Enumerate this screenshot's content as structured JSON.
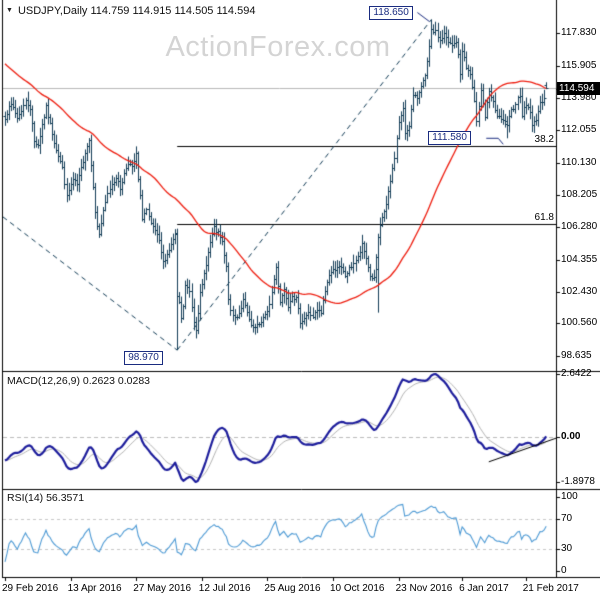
{
  "window": {
    "title": "USDJPY,Daily 114.759 114.915 114.505 114.594"
  },
  "watermark": "ActionForex.com",
  "macd_panel": {
    "label": "MACD(12,26,9) 0.2623 0.0283"
  },
  "rsi_panel": {
    "label": "RSI(14) 56.3571"
  },
  "chart_data": {
    "type": "candlestick",
    "symbol": "USDJPY",
    "timeframe": "Daily",
    "last_bar": {
      "open": 114.759,
      "high": 114.915,
      "low": 114.505,
      "close": 114.594
    },
    "price_axis": {
      "ticks": [
        "117.830",
        "115.905",
        "113.980",
        "112.055",
        "110.130",
        "108.205",
        "106.280",
        "104.355",
        "102.430",
        "100.560",
        "98.635"
      ],
      "ylim": [
        97.7,
        119.7
      ],
      "current_price": "114.594",
      "current_price_value": 114.594
    },
    "x_axis": {
      "ticks": [
        {
          "label": "29 Feb 2016",
          "d": 0
        },
        {
          "label": "13 Apr 2016",
          "d": 32
        },
        {
          "label": "27 May 2016",
          "d": 64
        },
        {
          "label": "12 Jul 2016",
          "d": 96
        },
        {
          "label": "25 Aug 2016",
          "d": 128
        },
        {
          "label": "10 Oct 2016",
          "d": 160
        },
        {
          "label": "23 Nov 2016",
          "d": 192
        },
        {
          "label": "6 Jan 2017",
          "d": 223
        },
        {
          "label": "21 Feb 2017",
          "d": 254
        }
      ]
    },
    "bars": {
      "count": 265,
      "first_open": 112.9,
      "prehistory": {
        "len": 70,
        "start": 121.5
      },
      "close_anchors": [
        [
          0,
          112.7
        ],
        [
          2,
          113.6
        ],
        [
          4,
          113.4
        ],
        [
          6,
          112.8
        ],
        [
          8,
          113.3
        ],
        [
          10,
          113.8
        ],
        [
          12,
          113.4
        ],
        [
          14,
          111.4
        ],
        [
          16,
          111.2
        ],
        [
          18,
          112.4
        ],
        [
          20,
          113.4
        ],
        [
          22,
          112.4
        ],
        [
          24,
          111.4
        ],
        [
          26,
          110.6
        ],
        [
          28,
          109.8
        ],
        [
          30,
          108.1
        ],
        [
          31,
          108.5
        ],
        [
          33,
          109.1
        ],
        [
          35,
          108.8
        ],
        [
          37,
          109.8
        ],
        [
          39,
          110.8
        ],
        [
          41,
          111.5
        ],
        [
          43,
          108.8
        ],
        [
          44,
          107.1
        ],
        [
          45,
          106.4
        ],
        [
          46,
          105.9
        ],
        [
          48,
          107.2
        ],
        [
          50,
          108.3
        ],
        [
          52,
          108.9
        ],
        [
          54,
          109.3
        ],
        [
          56,
          108.6
        ],
        [
          58,
          109.5
        ],
        [
          60,
          110.2
        ],
        [
          62,
          109.8
        ],
        [
          64,
          110.6
        ],
        [
          65,
          109.1
        ],
        [
          66,
          108.1
        ],
        [
          67,
          106.9
        ],
        [
          69,
          107.3
        ],
        [
          71,
          106.4
        ],
        [
          73,
          106.1
        ],
        [
          75,
          105.4
        ],
        [
          77,
          104.2
        ],
        [
          79,
          104.7
        ],
        [
          81,
          105.2
        ],
        [
          83,
          105.9
        ],
        [
          84,
          102.2
        ],
        [
          85,
          101.8
        ],
        [
          86,
          100.8
        ],
        [
          87,
          101.6
        ],
        [
          88,
          102.8
        ],
        [
          90,
          102.5
        ],
        [
          92,
          100.7
        ],
        [
          93,
          100.3
        ],
        [
          95,
          102.3
        ],
        [
          96,
          102.8
        ],
        [
          98,
          104.2
        ],
        [
          100,
          105.4
        ],
        [
          102,
          106.2
        ],
        [
          104,
          105.9
        ],
        [
          106,
          105.4
        ],
        [
          107,
          104.6
        ],
        [
          108,
          103.9
        ],
        [
          109,
          102.1
        ],
        [
          110,
          101.2
        ],
        [
          112,
          100.9
        ],
        [
          114,
          101.2
        ],
        [
          116,
          101.9
        ],
        [
          118,
          101.2
        ],
        [
          120,
          100.3
        ],
        [
          122,
          100.3
        ],
        [
          124,
          100.5
        ],
        [
          126,
          100.9
        ],
        [
          128,
          101.2
        ],
        [
          130,
          102.4
        ],
        [
          131,
          103.2
        ],
        [
          132,
          103.9
        ],
        [
          134,
          101.9
        ],
        [
          136,
          102.6
        ],
        [
          138,
          101.7
        ],
        [
          140,
          102.3
        ],
        [
          142,
          102.0
        ],
        [
          144,
          100.7
        ],
        [
          146,
          100.9
        ],
        [
          148,
          101.2
        ],
        [
          150,
          101.0
        ],
        [
          152,
          101.3
        ],
        [
          154,
          101.2
        ],
        [
          156,
          102.5
        ],
        [
          158,
          103.5
        ],
        [
          160,
          103.7
        ],
        [
          162,
          104.0
        ],
        [
          164,
          103.8
        ],
        [
          166,
          103.4
        ],
        [
          168,
          103.8
        ],
        [
          170,
          104.2
        ],
        [
          172,
          104.5
        ],
        [
          174,
          105.2
        ],
        [
          176,
          104.5
        ],
        [
          178,
          103.4
        ],
        [
          180,
          103.2
        ],
        [
          181,
          104.5
        ],
        [
          182,
          105.7
        ],
        [
          184,
          106.9
        ],
        [
          186,
          107.6
        ],
        [
          188,
          109.0
        ],
        [
          190,
          110.5
        ],
        [
          192,
          112.6
        ],
        [
          194,
          113.3
        ],
        [
          195,
          111.9
        ],
        [
          197,
          112.4
        ],
        [
          199,
          114.1
        ],
        [
          201,
          114.0
        ],
        [
          203,
          114.8
        ],
        [
          205,
          115.2
        ],
        [
          207,
          117.0
        ],
        [
          208,
          118.1
        ],
        [
          210,
          117.9
        ],
        [
          212,
          117.4
        ],
        [
          214,
          117.8
        ],
        [
          216,
          117.3
        ],
        [
          218,
          117.1
        ],
        [
          220,
          117.4
        ],
        [
          221,
          116.5
        ],
        [
          222,
          115.4
        ],
        [
          223,
          116.9
        ],
        [
          225,
          115.8
        ],
        [
          227,
          115.4
        ],
        [
          229,
          113.7
        ],
        [
          230,
          112.7
        ],
        [
          232,
          114.5
        ],
        [
          234,
          112.9
        ],
        [
          236,
          114.3
        ],
        [
          238,
          113.7
        ],
        [
          240,
          112.9
        ],
        [
          242,
          112.7
        ],
        [
          245,
          112.4
        ],
        [
          247,
          113.2
        ],
        [
          249,
          113.7
        ],
        [
          251,
          114.2
        ],
        [
          252,
          113.0
        ],
        [
          254,
          113.6
        ],
        [
          256,
          113.2
        ],
        [
          257,
          112.3
        ],
        [
          259,
          112.8
        ],
        [
          261,
          113.6
        ],
        [
          263,
          114.1
        ],
        [
          264,
          114.59
        ]
      ],
      "special": [
        {
          "d": 84,
          "o": 105.9,
          "h": 106.2,
          "l": 98.97,
          "c": 102.2
        },
        {
          "d": 182,
          "o": 103.8,
          "h": 105.9,
          "l": 101.2,
          "c": 105.7
        },
        {
          "d": 208,
          "o": 117.1,
          "h": 118.65,
          "l": 116.9,
          "c": 118.1
        },
        {
          "d": 245,
          "o": 112.6,
          "h": 112.9,
          "l": 111.58,
          "c": 112.4
        },
        {
          "d": 264,
          "o": 114.759,
          "h": 114.915,
          "l": 114.505,
          "c": 114.594
        }
      ]
    },
    "moving_average": {
      "period": 55
    },
    "fib_levels": [
      {
        "label": "38.2",
        "price": 111.13
      },
      {
        "label": "61.8",
        "price": 106.49
      }
    ],
    "annotations": [
      {
        "id": "high",
        "text": "118.650",
        "price": 118.65,
        "d": 208
      },
      {
        "id": "retrace",
        "text": "111.580",
        "price": 111.58,
        "d": 245
      },
      {
        "id": "low",
        "text": "98.970",
        "price": 98.97,
        "d": 84
      }
    ],
    "trendlines": {
      "main": [
        {
          "d1": -1,
          "p1": 106.9,
          "d2": 84,
          "p2": 98.97
        },
        {
          "d1": 84,
          "p1": 98.97,
          "d2": 208,
          "p2": 118.65
        }
      ],
      "macd": {
        "d1": 236,
        "v1": -1.05,
        "d2": 269,
        "v2": -0.05
      }
    },
    "macd": {
      "params": [
        12,
        26,
        9
      ],
      "current": [
        0.2623,
        0.0283
      ],
      "scale": [
        {
          "label": "2.6422",
          "v": 2.6422,
          "bold": false
        },
        {
          "label": "0.00",
          "v": 0,
          "bold": true
        },
        {
          "label": "-1.8978",
          "v": -1.8978,
          "bold": false
        }
      ]
    },
    "rsi": {
      "period": 14,
      "current": 56.3571,
      "scale": [
        {
          "label": "100",
          "v": 100,
          "dashed": false
        },
        {
          "label": "70",
          "v": 70,
          "dashed": true
        },
        {
          "label": "30",
          "v": 30,
          "dashed": true
        },
        {
          "label": "0",
          "v": 0,
          "dashed": false
        }
      ]
    },
    "colors": {
      "bar": "#123c56",
      "ma": "#ee1c0e",
      "trend": "#123c56",
      "macd_line": "#1d1d9c",
      "macd_signal": "#b4b4b4",
      "rsi_line": "#4f9bd5",
      "fib_line": "#000000",
      "current_price_line": "#b8b8b8",
      "watermark": "#d4d4d4",
      "tag": "#1a2c80",
      "border": "#000000"
    }
  }
}
